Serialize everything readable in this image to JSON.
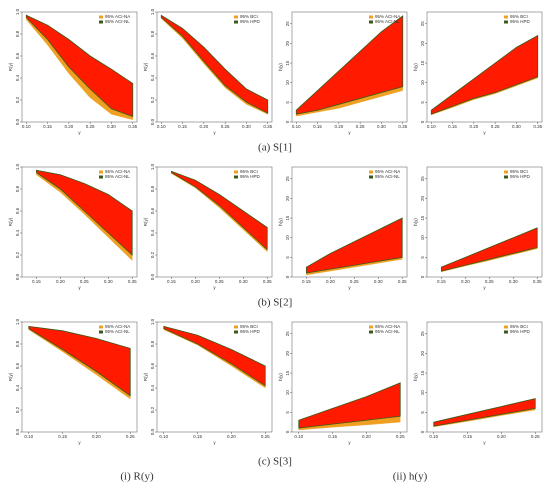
{
  "figure": {
    "captions": [
      "(a) S[1]",
      "(b) S[2]",
      "(c) S[3]"
    ],
    "columns": [
      "(i) R(y)",
      "(ii) h(y)"
    ]
  },
  "chart_data": [
    {
      "type": "band",
      "ylabel": "R(y)",
      "xlabel": "y",
      "x": [
        0.1,
        0.15,
        0.2,
        0.25,
        0.3,
        0.35
      ],
      "xlim": [
        0.09,
        0.36
      ],
      "xticks": [
        {
          "value": 0.1,
          "label": "0.10"
        },
        {
          "value": 0.15,
          "label": "0.15"
        },
        {
          "value": 0.2,
          "label": "0.20"
        },
        {
          "value": 0.25,
          "label": "0.25"
        },
        {
          "value": 0.3,
          "label": "0.30"
        },
        {
          "value": 0.35,
          "label": "0.35"
        }
      ],
      "ylim": [
        0,
        1
      ],
      "yticks": [
        {
          "value": 0,
          "label": "0.0"
        },
        0.2,
        0.4,
        0.6,
        0.8,
        {
          "value": 1,
          "label": "1.0"
        }
      ],
      "band_color": "#ff1a00",
      "series": [
        {
          "name": "95% ACI-NA",
          "color": "#f0a020",
          "lower": [
            0.93,
            0.7,
            0.44,
            0.22,
            0.07,
            0.02
          ],
          "upper": [
            0.97,
            0.88,
            0.75,
            0.6,
            0.48,
            0.35
          ]
        },
        {
          "name": "95% ACI-NL",
          "color": "#3a5a1a",
          "lower": [
            0.95,
            0.75,
            0.5,
            0.3,
            0.12,
            0.05
          ],
          "upper": [
            0.97,
            0.88,
            0.75,
            0.6,
            0.48,
            0.35
          ]
        }
      ]
    },
    {
      "type": "band",
      "ylabel": "R(y)",
      "xlabel": "y",
      "x": [
        0.1,
        0.15,
        0.2,
        0.25,
        0.3,
        0.35
      ],
      "xlim": [
        0.09,
        0.36
      ],
      "xticks": [
        {
          "value": 0.1,
          "label": "0.10"
        },
        {
          "value": 0.15,
          "label": "0.15"
        },
        {
          "value": 0.2,
          "label": "0.20"
        },
        {
          "value": 0.25,
          "label": "0.25"
        },
        {
          "value": 0.3,
          "label": "0.30"
        },
        {
          "value": 0.35,
          "label": "0.35"
        }
      ],
      "ylim": [
        0,
        1
      ],
      "yticks": [
        {
          "value": 0,
          "label": "0.0"
        },
        0.2,
        0.4,
        0.6,
        0.8,
        {
          "value": 1,
          "label": "1.0"
        }
      ],
      "band_color": "#ff1a00",
      "series": [
        {
          "name": "95% BCI",
          "color": "#f0a020",
          "lower": [
            0.94,
            0.76,
            0.53,
            0.31,
            0.16,
            0.07
          ],
          "upper": [
            0.97,
            0.85,
            0.68,
            0.48,
            0.3,
            0.2
          ]
        },
        {
          "name": "95% HPD",
          "color": "#3a5a1a",
          "lower": [
            0.95,
            0.78,
            0.55,
            0.33,
            0.18,
            0.08
          ],
          "upper": [
            0.97,
            0.85,
            0.68,
            0.48,
            0.3,
            0.2
          ]
        }
      ]
    },
    {
      "type": "band",
      "ylabel": "h(y)",
      "xlabel": "y",
      "x": [
        0.1,
        0.15,
        0.2,
        0.25,
        0.3,
        0.35
      ],
      "xlim": [
        0.09,
        0.36
      ],
      "xticks": [
        {
          "value": 0.1,
          "label": "0.10"
        },
        {
          "value": 0.15,
          "label": "0.15"
        },
        {
          "value": 0.2,
          "label": "0.20"
        },
        {
          "value": 0.25,
          "label": "0.25"
        },
        {
          "value": 0.3,
          "label": "0.30"
        },
        {
          "value": 0.35,
          "label": "0.35"
        }
      ],
      "ylim": [
        0,
        28
      ],
      "yticks": [
        0,
        5,
        10,
        15,
        20,
        25
      ],
      "band_color": "#ff1a00",
      "series": [
        {
          "name": "95% ACI-NA",
          "color": "#f0a020",
          "lower": [
            1.5,
            2.5,
            3.5,
            5,
            6.5,
            8
          ],
          "upper": [
            3,
            8,
            13,
            18,
            23,
            27
          ]
        },
        {
          "name": "95% ACI-NL",
          "color": "#3a5a1a",
          "lower": [
            2,
            3,
            4.5,
            6,
            7.5,
            9
          ],
          "upper": [
            3,
            8,
            13,
            18,
            23,
            27
          ]
        }
      ]
    },
    {
      "type": "band",
      "ylabel": "h(y)",
      "xlabel": "y",
      "x": [
        0.1,
        0.15,
        0.2,
        0.25,
        0.3,
        0.35
      ],
      "xlim": [
        0.09,
        0.36
      ],
      "xticks": [
        {
          "value": 0.1,
          "label": "0.10"
        },
        {
          "value": 0.15,
          "label": "0.15"
        },
        {
          "value": 0.2,
          "label": "0.20"
        },
        {
          "value": 0.25,
          "label": "0.25"
        },
        {
          "value": 0.3,
          "label": "0.30"
        },
        {
          "value": 0.35,
          "label": "0.35"
        }
      ],
      "ylim": [
        0,
        28
      ],
      "yticks": [
        0,
        5,
        10,
        15,
        20,
        25
      ],
      "band_color": "#ff1a00",
      "series": [
        {
          "name": "95% BCI",
          "color": "#f0a020",
          "lower": [
            1.8,
            3.7,
            5.7,
            7.2,
            9.2,
            11.2
          ],
          "upper": [
            3,
            7,
            11,
            15,
            19,
            22
          ]
        },
        {
          "name": "95% HPD",
          "color": "#3a5a1a",
          "lower": [
            2,
            4,
            6,
            7.5,
            9.5,
            11.5
          ],
          "upper": [
            3,
            7,
            11,
            15,
            19,
            22
          ]
        }
      ]
    },
    {
      "type": "band",
      "ylabel": "R(y)",
      "xlabel": "y",
      "x": [
        0.15,
        0.2,
        0.25,
        0.3,
        0.35
      ],
      "xlim": [
        0.12,
        0.36
      ],
      "xticks": [
        {
          "value": 0.15,
          "label": "0.15"
        },
        {
          "value": 0.2,
          "label": "0.20"
        },
        {
          "value": 0.25,
          "label": "0.25"
        },
        {
          "value": 0.3,
          "label": "0.30"
        },
        {
          "value": 0.35,
          "label": "0.35"
        }
      ],
      "ylim": [
        0,
        1
      ],
      "yticks": [
        {
          "value": 0,
          "label": "0.0"
        },
        0.2,
        0.4,
        0.6,
        0.8,
        {
          "value": 1,
          "label": "1.0"
        }
      ],
      "band_color": "#ff1a00",
      "series": [
        {
          "name": "95% ACI-NA",
          "color": "#f0a020",
          "lower": [
            0.93,
            0.77,
            0.57,
            0.36,
            0.15
          ],
          "upper": [
            0.97,
            0.93,
            0.85,
            0.75,
            0.6
          ]
        },
        {
          "name": "95% ACI-NL",
          "color": "#3a5a1a",
          "lower": [
            0.95,
            0.8,
            0.6,
            0.4,
            0.2
          ],
          "upper": [
            0.97,
            0.93,
            0.85,
            0.75,
            0.6
          ]
        }
      ]
    },
    {
      "type": "band",
      "ylabel": "R(y)",
      "xlabel": "y",
      "x": [
        0.15,
        0.2,
        0.25,
        0.3,
        0.35
      ],
      "xlim": [
        0.12,
        0.36
      ],
      "xticks": [
        {
          "value": 0.15,
          "label": "0.15"
        },
        {
          "value": 0.2,
          "label": "0.20"
        },
        {
          "value": 0.25,
          "label": "0.25"
        },
        {
          "value": 0.3,
          "label": "0.30"
        },
        {
          "value": 0.35,
          "label": "0.35"
        }
      ],
      "ylim": [
        0,
        1
      ],
      "yticks": [
        {
          "value": 0,
          "label": "0.0"
        },
        0.2,
        0.4,
        0.6,
        0.8,
        {
          "value": 1,
          "label": "1.0"
        }
      ],
      "band_color": "#ff1a00",
      "series": [
        {
          "name": "95% BCI",
          "color": "#f0a020",
          "lower": [
            0.94,
            0.81,
            0.63,
            0.43,
            0.23
          ],
          "upper": [
            0.96,
            0.88,
            0.75,
            0.6,
            0.45
          ]
        },
        {
          "name": "95% HPD",
          "color": "#3a5a1a",
          "lower": [
            0.95,
            0.82,
            0.65,
            0.45,
            0.25
          ],
          "upper": [
            0.96,
            0.88,
            0.75,
            0.6,
            0.45
          ]
        }
      ]
    },
    {
      "type": "band",
      "ylabel": "h(y)",
      "xlabel": "y",
      "x": [
        0.15,
        0.2,
        0.25,
        0.3,
        0.35
      ],
      "xlim": [
        0.12,
        0.36
      ],
      "xticks": [
        {
          "value": 0.15,
          "label": "0.15"
        },
        {
          "value": 0.2,
          "label": "0.20"
        },
        {
          "value": 0.25,
          "label": "0.25"
        },
        {
          "value": 0.3,
          "label": "0.30"
        },
        {
          "value": 0.35,
          "label": "0.35"
        }
      ],
      "ylim": [
        0,
        28
      ],
      "yticks": [
        0,
        5,
        10,
        15,
        20,
        25
      ],
      "band_color": "#ff1a00",
      "series": [
        {
          "name": "95% ACI-NA",
          "color": "#f0a020",
          "lower": [
            0.5,
            1.5,
            2.5,
            3.5,
            4.5
          ],
          "upper": [
            2.5,
            6,
            9,
            12,
            15
          ]
        },
        {
          "name": "95% ACI-NL",
          "color": "#3a5a1a",
          "lower": [
            1,
            2,
            3,
            4,
            5
          ],
          "upper": [
            2.5,
            6,
            9,
            12,
            15
          ]
        }
      ]
    },
    {
      "type": "band",
      "ylabel": "h(y)",
      "xlabel": "y",
      "x": [
        0.15,
        0.2,
        0.25,
        0.3,
        0.35
      ],
      "xlim": [
        0.12,
        0.36
      ],
      "xticks": [
        {
          "value": 0.15,
          "label": "0.15"
        },
        {
          "value": 0.2,
          "label": "0.20"
        },
        {
          "value": 0.25,
          "label": "0.25"
        },
        {
          "value": 0.3,
          "label": "0.30"
        },
        {
          "value": 0.35,
          "label": "0.35"
        }
      ],
      "ylim": [
        0,
        28
      ],
      "yticks": [
        0,
        5,
        10,
        15,
        20,
        25
      ],
      "band_color": "#ff1a00",
      "series": [
        {
          "name": "95% BCI",
          "color": "#f0a020",
          "lower": [
            1.3,
            2.8,
            4.2,
            5.7,
            7.2
          ],
          "upper": [
            2.5,
            5,
            7.5,
            10,
            12.5
          ]
        },
        {
          "name": "95% HPD",
          "color": "#3a5a1a",
          "lower": [
            1.5,
            3,
            4.5,
            6,
            7.5
          ],
          "upper": [
            2.5,
            5,
            7.5,
            10,
            12.5
          ]
        }
      ]
    },
    {
      "type": "band",
      "ylabel": "R(y)",
      "xlabel": "y",
      "x": [
        0.1,
        0.15,
        0.2,
        0.25
      ],
      "xlim": [
        0.09,
        0.26
      ],
      "xticks": [
        {
          "value": 0.1,
          "label": "0.10"
        },
        {
          "value": 0.15,
          "label": "0.15"
        },
        {
          "value": 0.2,
          "label": "0.20"
        },
        {
          "value": 0.25,
          "label": "0.25"
        }
      ],
      "ylim": [
        0,
        1
      ],
      "yticks": [
        {
          "value": 0,
          "label": "0.0"
        },
        0.2,
        0.4,
        0.6,
        0.8,
        {
          "value": 1,
          "label": "1.0"
        }
      ],
      "band_color": "#ff1a00",
      "series": [
        {
          "name": "95% ACI-NA",
          "color": "#f0a020",
          "lower": [
            0.93,
            0.73,
            0.52,
            0.3
          ],
          "upper": [
            0.96,
            0.92,
            0.85,
            0.76
          ]
        },
        {
          "name": "95% ACI-NL",
          "color": "#3a5a1a",
          "lower": [
            0.94,
            0.75,
            0.55,
            0.33
          ],
          "upper": [
            0.96,
            0.92,
            0.85,
            0.76
          ]
        }
      ]
    },
    {
      "type": "band",
      "ylabel": "R(y)",
      "xlabel": "y",
      "x": [
        0.1,
        0.15,
        0.2,
        0.25
      ],
      "xlim": [
        0.09,
        0.26
      ],
      "xticks": [
        {
          "value": 0.1,
          "label": "0.10"
        },
        {
          "value": 0.15,
          "label": "0.15"
        },
        {
          "value": 0.2,
          "label": "0.20"
        },
        {
          "value": 0.25,
          "label": "0.25"
        }
      ],
      "ylim": [
        0,
        1
      ],
      "yticks": [
        {
          "value": 0,
          "label": "0.0"
        },
        0.2,
        0.4,
        0.6,
        0.8,
        {
          "value": 1,
          "label": "1.0"
        }
      ],
      "band_color": "#ff1a00",
      "series": [
        {
          "name": "95% BCI",
          "color": "#f0a020",
          "lower": [
            0.93,
            0.79,
            0.6,
            0.4
          ],
          "upper": [
            0.96,
            0.88,
            0.75,
            0.6
          ]
        },
        {
          "name": "95% HPD",
          "color": "#3a5a1a",
          "lower": [
            0.94,
            0.8,
            0.62,
            0.42
          ],
          "upper": [
            0.96,
            0.88,
            0.75,
            0.6
          ]
        }
      ]
    },
    {
      "type": "band",
      "ylabel": "h(y)",
      "xlabel": "y",
      "x": [
        0.1,
        0.15,
        0.2,
        0.25
      ],
      "xlim": [
        0.09,
        0.26
      ],
      "xticks": [
        {
          "value": 0.1,
          "label": "0.10"
        },
        {
          "value": 0.15,
          "label": "0.15"
        },
        {
          "value": 0.2,
          "label": "0.20"
        },
        {
          "value": 0.25,
          "label": "0.25"
        }
      ],
      "ylim": [
        0,
        28
      ],
      "yticks": [
        0,
        5,
        10,
        15,
        20,
        25
      ],
      "band_color": "#ff1a00",
      "series": [
        {
          "name": "95% ACI-NA",
          "color": "#f0a020",
          "lower": [
            0.5,
            1.2,
            1.8,
            2.5
          ],
          "upper": [
            3,
            6,
            9,
            12.5
          ]
        },
        {
          "name": "95% ACI-NL",
          "color": "#3a5a1a",
          "lower": [
            1,
            2,
            3,
            4
          ],
          "upper": [
            3,
            6,
            9,
            12.5
          ]
        }
      ]
    },
    {
      "type": "band",
      "ylabel": "h(y)",
      "xlabel": "y",
      "x": [
        0.1,
        0.15,
        0.2,
        0.25
      ],
      "xlim": [
        0.09,
        0.26
      ],
      "xticks": [
        {
          "value": 0.1,
          "label": "0.10"
        },
        {
          "value": 0.15,
          "label": "0.15"
        },
        {
          "value": 0.2,
          "label": "0.20"
        },
        {
          "value": 0.25,
          "label": "0.25"
        }
      ],
      "ylim": [
        0,
        28
      ],
      "yticks": [
        0,
        5,
        10,
        15,
        20,
        25
      ],
      "band_color": "#ff1a00",
      "series": [
        {
          "name": "95% BCI",
          "color": "#f0a020",
          "lower": [
            1.3,
            2.7,
            4.2,
            5.6
          ],
          "upper": [
            2.5,
            4.5,
            6.5,
            8.5
          ]
        },
        {
          "name": "95% HPD",
          "color": "#3a5a1a",
          "lower": [
            1.5,
            3,
            4.5,
            6
          ],
          "upper": [
            2.5,
            4.5,
            6.5,
            8.5
          ]
        }
      ]
    }
  ]
}
